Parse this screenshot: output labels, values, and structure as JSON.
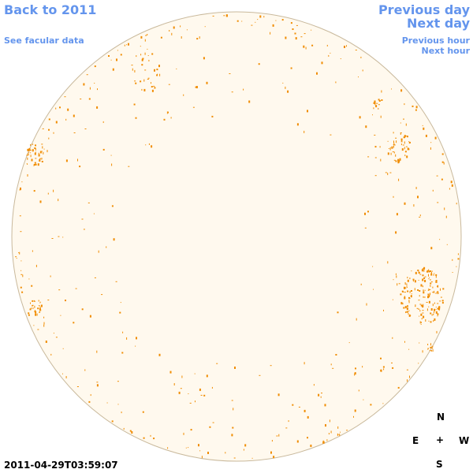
{
  "nav": {
    "back": "Back to 2011",
    "facular_data": "See facular data",
    "previous_day": "Previous day",
    "next_day": "Next day",
    "previous_hour": "Previous hour",
    "next_hour": "Next hour"
  },
  "timestamp": "2011-04-29T03:59:07",
  "compass": {
    "north": "N",
    "east": "E",
    "center": "+",
    "west": "W",
    "south": "S"
  }
}
